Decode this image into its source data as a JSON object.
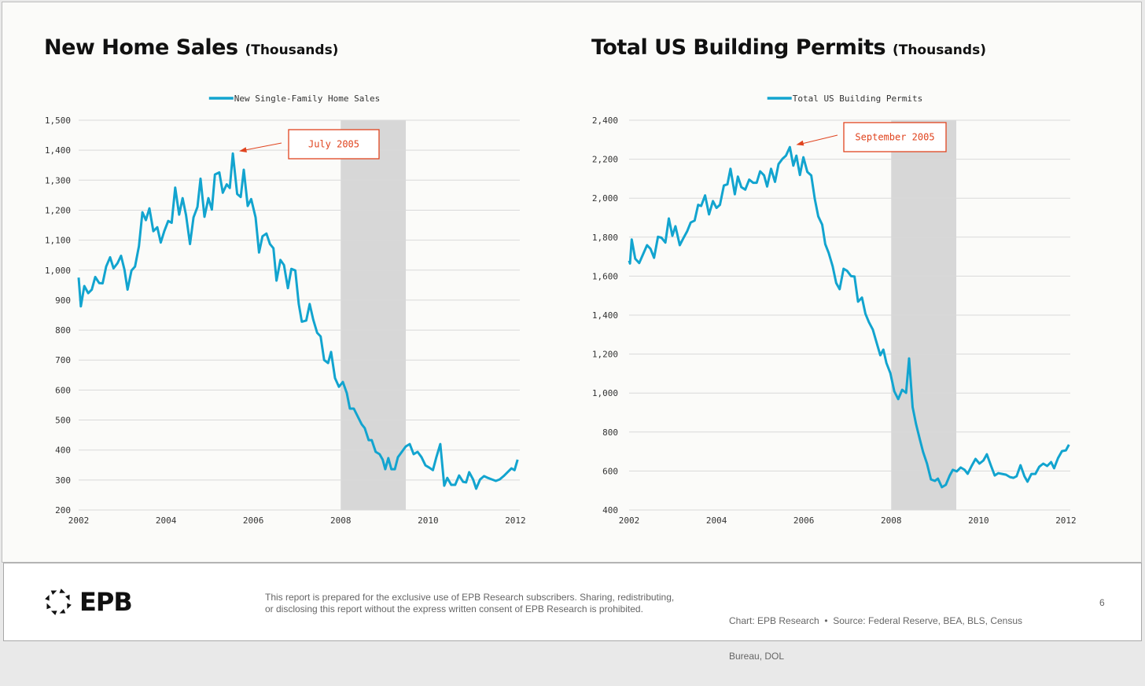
{
  "charts_meta": [
    {
      "title": "New Home Sales",
      "subtitle": "(Thousands)"
    },
    {
      "title": "Total US Building Permits",
      "subtitle": "(Thousands)"
    }
  ],
  "colors": {
    "line": "#12a4cf",
    "annotation": "#e0441f",
    "recession": "#d7d7d7",
    "grid": "#d9d9d9"
  },
  "chart_data": [
    {
      "type": "line",
      "title": "New Home Sales (Thousands)",
      "legend": "New Single-Family Home Sales",
      "legend_position": "top-center",
      "xlim": [
        2002,
        2012.1
      ],
      "ylim": [
        200,
        1500
      ],
      "xticks": [
        2002,
        2004,
        2006,
        2008,
        2010,
        2012
      ],
      "xtick_labels": [
        "2002",
        "2004",
        "2006",
        "2008",
        "2010",
        "2012"
      ],
      "yticks": [
        200,
        300,
        400,
        500,
        600,
        700,
        800,
        900,
        1000,
        1100,
        1200,
        1300,
        1400,
        1500
      ],
      "ytick_labels": [
        "200",
        "300",
        "400",
        "500",
        "600",
        "700",
        "800",
        "900",
        "1,000",
        "1,100",
        "1,200",
        "1,300",
        "1,400",
        "1,500"
      ],
      "grid": true,
      "recession": [
        2008.0,
        2009.49
      ],
      "annotation": {
        "label": "July 2005",
        "x": 2005.53,
        "y": 1389
      },
      "x": [
        2002.0,
        2002.05,
        2002.13,
        2002.22,
        2002.3,
        2002.38,
        2002.47,
        2002.55,
        2002.63,
        2002.72,
        2002.8,
        2002.89,
        2002.97,
        2003.05,
        2003.12,
        2003.21,
        2003.29,
        2003.38,
        2003.46,
        2003.54,
        2003.62,
        2003.71,
        2003.8,
        2003.88,
        2003.96,
        2004.05,
        2004.13,
        2004.21,
        2004.3,
        2004.38,
        2004.46,
        2004.55,
        2004.63,
        2004.72,
        2004.79,
        2004.88,
        2004.97,
        2005.05,
        2005.12,
        2005.22,
        2005.3,
        2005.39,
        2005.46,
        2005.53,
        2005.63,
        2005.71,
        2005.78,
        2005.87,
        2005.95,
        2006.05,
        2006.13,
        2006.21,
        2006.3,
        2006.38,
        2006.46,
        2006.53,
        2006.62,
        2006.7,
        2006.79,
        2006.87,
        2006.96,
        2007.04,
        2007.11,
        2007.21,
        2007.29,
        2007.37,
        2007.46,
        2007.54,
        2007.62,
        2007.71,
        2007.78,
        2007.87,
        2007.96,
        2008.05,
        2008.14,
        2008.21,
        2008.3,
        2008.39,
        2008.48,
        2008.55,
        2008.64,
        2008.71,
        2008.8,
        2008.89,
        2008.96,
        2009.02,
        2009.09,
        2009.16,
        2009.24,
        2009.31,
        2009.4,
        2009.49,
        2009.58,
        2009.67,
        2009.76,
        2009.85,
        2009.94,
        2010.03,
        2010.11,
        2010.19,
        2010.28,
        2010.37,
        2010.44,
        2010.53,
        2010.62,
        2010.71,
        2010.8,
        2010.87,
        2010.94,
        2011.03,
        2011.1,
        2011.19,
        2011.28,
        2011.37,
        2011.46,
        2011.55,
        2011.64,
        2011.73,
        2011.82,
        2011.91,
        2011.98,
        2012.05
      ],
      "y": [
        975,
        879,
        947,
        923,
        935,
        977,
        957,
        956,
        1012,
        1043,
        1006,
        1023,
        1048,
        1001,
        935,
        999,
        1012,
        1080,
        1193,
        1167,
        1206,
        1130,
        1143,
        1092,
        1130,
        1164,
        1158,
        1275,
        1185,
        1240,
        1183,
        1087,
        1176,
        1211,
        1305,
        1178,
        1240,
        1202,
        1319,
        1326,
        1258,
        1286,
        1274,
        1389,
        1254,
        1244,
        1335,
        1214,
        1237,
        1176,
        1059,
        1113,
        1122,
        1087,
        1073,
        965,
        1034,
        1017,
        940,
        1004,
        999,
        887,
        828,
        832,
        887,
        835,
        791,
        779,
        700,
        690,
        727,
        640,
        611,
        627,
        590,
        538,
        538,
        512,
        486,
        473,
        433,
        433,
        394,
        386,
        368,
        336,
        373,
        336,
        336,
        376,
        394,
        412,
        420,
        386,
        394,
        376,
        349,
        341,
        333,
        376,
        420,
        281,
        307,
        284,
        284,
        315,
        294,
        292,
        326,
        302,
        271,
        302,
        313,
        307,
        302,
        297,
        302,
        313,
        326,
        339,
        333,
        368
      ]
    },
    {
      "type": "line",
      "title": "Total US Building Permits (Thousands)",
      "legend": "Total US Building Permits",
      "legend_position": "top-center",
      "xlim": [
        2002,
        2012.1
      ],
      "ylim": [
        400,
        2400
      ],
      "xticks": [
        2002,
        2004,
        2006,
        2008,
        2010,
        2012
      ],
      "xtick_labels": [
        "2002",
        "2004",
        "2006",
        "2008",
        "2010",
        "2012"
      ],
      "yticks": [
        400,
        600,
        800,
        1000,
        1200,
        1400,
        1600,
        1800,
        2000,
        2200,
        2400
      ],
      "ytick_labels": [
        "400",
        "600",
        "800",
        "1,000",
        "1,200",
        "1,400",
        "1,600",
        "1,800",
        "2,000",
        "2,200",
        "2,400"
      ],
      "grid": true,
      "recession": [
        2008.0,
        2009.49
      ],
      "annotation": {
        "label": "September 2005",
        "x": 2005.68,
        "y": 2262
      },
      "x": [
        2002.0,
        2002.02,
        2002.06,
        2002.14,
        2002.23,
        2002.32,
        2002.41,
        2002.49,
        2002.57,
        2002.66,
        2002.74,
        2002.83,
        2002.91,
        2002.99,
        2003.06,
        2003.16,
        2003.24,
        2003.33,
        2003.41,
        2003.5,
        2003.58,
        2003.65,
        2003.74,
        2003.83,
        2003.92,
        2004.0,
        2004.08,
        2004.17,
        2004.25,
        2004.32,
        2004.42,
        2004.49,
        2004.57,
        2004.66,
        2004.75,
        2004.84,
        2004.92,
        2005.0,
        2005.09,
        2005.16,
        2005.25,
        2005.34,
        2005.42,
        2005.51,
        2005.59,
        2005.68,
        2005.76,
        2005.83,
        2005.91,
        2005.99,
        2006.08,
        2006.17,
        2006.25,
        2006.33,
        2006.42,
        2006.49,
        2006.57,
        2006.66,
        2006.74,
        2006.82,
        2006.91,
        2006.99,
        2007.08,
        2007.16,
        2007.24,
        2007.33,
        2007.41,
        2007.49,
        2007.58,
        2007.67,
        2007.75,
        2007.82,
        2007.89,
        2007.98,
        2008.07,
        2008.16,
        2008.25,
        2008.34,
        2008.41,
        2008.49,
        2008.57,
        2008.66,
        2008.73,
        2008.82,
        2008.91,
        2009.0,
        2009.07,
        2009.16,
        2009.25,
        2009.34,
        2009.41,
        2009.5,
        2009.59,
        2009.68,
        2009.75,
        2009.84,
        2009.93,
        2010.02,
        2010.11,
        2010.19,
        2010.28,
        2010.37,
        2010.45,
        2010.54,
        2010.63,
        2010.72,
        2010.8,
        2010.87,
        2010.96,
        2011.05,
        2011.12,
        2011.21,
        2011.3,
        2011.39,
        2011.48,
        2011.57,
        2011.66,
        2011.73,
        2011.82,
        2011.91,
        2012.0,
        2012.07
      ],
      "y": [
        1680,
        1665,
        1788,
        1689,
        1667,
        1713,
        1759,
        1740,
        1694,
        1802,
        1797,
        1772,
        1896,
        1807,
        1856,
        1759,
        1794,
        1831,
        1875,
        1885,
        1966,
        1960,
        2014,
        1917,
        1985,
        1950,
        1966,
        2065,
        2071,
        2151,
        2020,
        2111,
        2057,
        2044,
        2095,
        2079,
        2079,
        2138,
        2117,
        2060,
        2151,
        2084,
        2175,
        2202,
        2218,
        2262,
        2167,
        2218,
        2119,
        2210,
        2135,
        2117,
        1996,
        1907,
        1864,
        1764,
        1719,
        1651,
        1565,
        1533,
        1638,
        1627,
        1600,
        1598,
        1469,
        1490,
        1407,
        1364,
        1326,
        1256,
        1194,
        1223,
        1154,
        1102,
        1009,
        969,
        1017,
        1001,
        1178,
        928,
        840,
        759,
        698,
        638,
        557,
        549,
        561,
        517,
        529,
        577,
        606,
        598,
        618,
        606,
        586,
        626,
        662,
        638,
        654,
        686,
        630,
        577,
        589,
        585,
        581,
        569,
        565,
        573,
        630,
        573,
        545,
        585,
        585,
        622,
        638,
        626,
        646,
        614,
        666,
        702,
        706,
        735
      ]
    }
  ],
  "footer": {
    "logo_text": "EPB",
    "disclaimer_line1": "This report is prepared for the exclusive use of EPB Research subscribers. Sharing, redistributing,",
    "disclaimer_line2": "or disclosing this report without the express written consent of EPB Research is prohibited.",
    "source_line1": "Chart: EPB Research  •  Source: Federal Reserve, BEA, BLS, Census",
    "source_line2": "Bureau, DOL",
    "page_number": "6"
  }
}
